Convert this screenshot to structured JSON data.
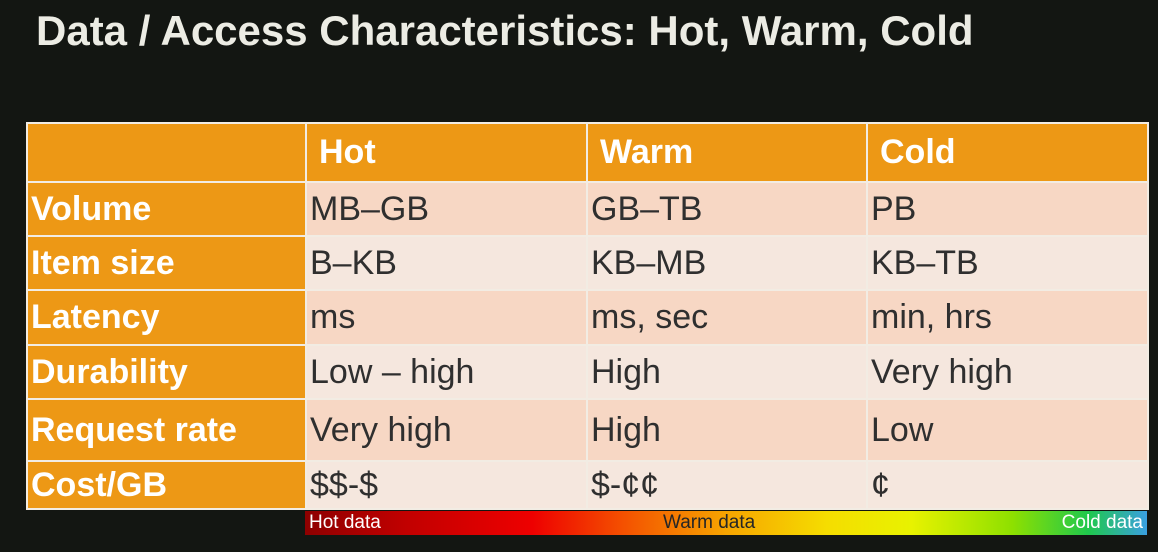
{
  "slide": {
    "title": "Data / Access Characteristics: Hot, Warm, Cold"
  },
  "table": {
    "columns": [
      "",
      "Hot",
      "Warm",
      "Cold"
    ],
    "rows": [
      {
        "label": "Volume",
        "hot": "MB–GB",
        "warm": "GB–TB",
        "cold": "PB"
      },
      {
        "label": "Item size",
        "hot": "B–KB",
        "warm": "KB–MB",
        "cold": "KB–TB"
      },
      {
        "label": "Latency",
        "hot": "ms",
        "warm": "ms, sec",
        "cold": "min, hrs"
      },
      {
        "label": "Durability",
        "hot": "Low – high",
        "warm": "High",
        "cold": "Very high"
      },
      {
        "label": "Request rate",
        "hot": "Very high",
        "warm": "High",
        "cold": "Low"
      },
      {
        "label": "Cost/GB",
        "hot": "$$-$",
        "warm": "$-¢¢",
        "cold": "¢"
      }
    ]
  },
  "temperature_bar": {
    "hot_label": "Hot data",
    "warm_label": "Warm data",
    "cold_label": "Cold data"
  },
  "colors": {
    "background": "#131612",
    "header_orange": "#ed9815",
    "band_dark": "#f7d7c4",
    "band_light": "#f5e7de"
  }
}
